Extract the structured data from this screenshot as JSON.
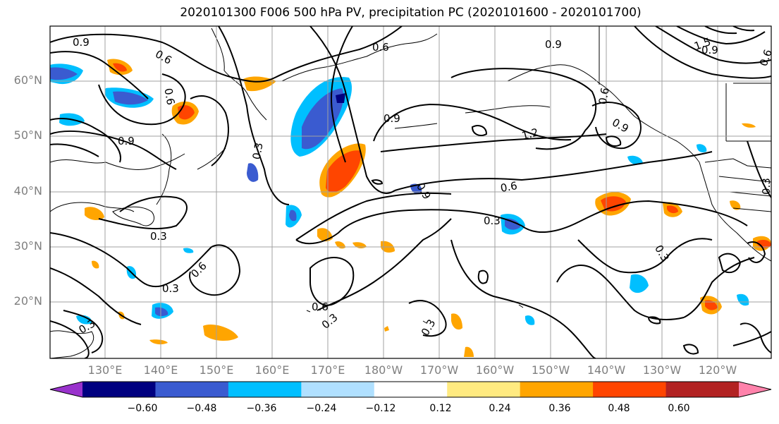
{
  "title": "2020101300 F006 500 hPa PV, precipitation PC (2020101600 - 2020101700)",
  "lat_labels": [
    "60°N",
    "50°N",
    "40°N",
    "30°N",
    "20°N"
  ],
  "lon_labels": [
    "130°E",
    "140°E",
    "150°E",
    "160°E",
    "170°E",
    "180°W",
    "170°W",
    "160°W",
    "150°W",
    "140°W",
    "130°W",
    "120°W"
  ],
  "colorbar": {
    "ticks": [
      "−0.60",
      "−0.48",
      "−0.36",
      "−0.24",
      "−0.12",
      "0.12",
      "0.24",
      "0.36",
      "0.48",
      "0.60"
    ],
    "colors": [
      "#9932cc",
      "#000080",
      "#3a5bd0",
      "#00bfff",
      "#b0e0ff",
      "#ffffff",
      "#ffea80",
      "#ffa500",
      "#ff4500",
      "#b22222",
      "#ff82ab"
    ]
  },
  "contour_labels": [
    "0.9",
    "0.6",
    "0.6",
    "0.9",
    "0.9",
    "1.2",
    "0.9",
    "0.6",
    "0.3",
    "0.3",
    "0.3",
    "0.6",
    "0.3",
    "0.6",
    "0.3",
    "0.3",
    "0.9",
    "0.6",
    "0.3",
    "0.9",
    "0.6",
    "1.5",
    "0.3",
    "0.9",
    "0.6",
    "0.3"
  ],
  "colors": {
    "positive": "#ff4500",
    "negative": "#3a5bd0",
    "contour": "#000000",
    "grid": "#a0a0a0"
  }
}
